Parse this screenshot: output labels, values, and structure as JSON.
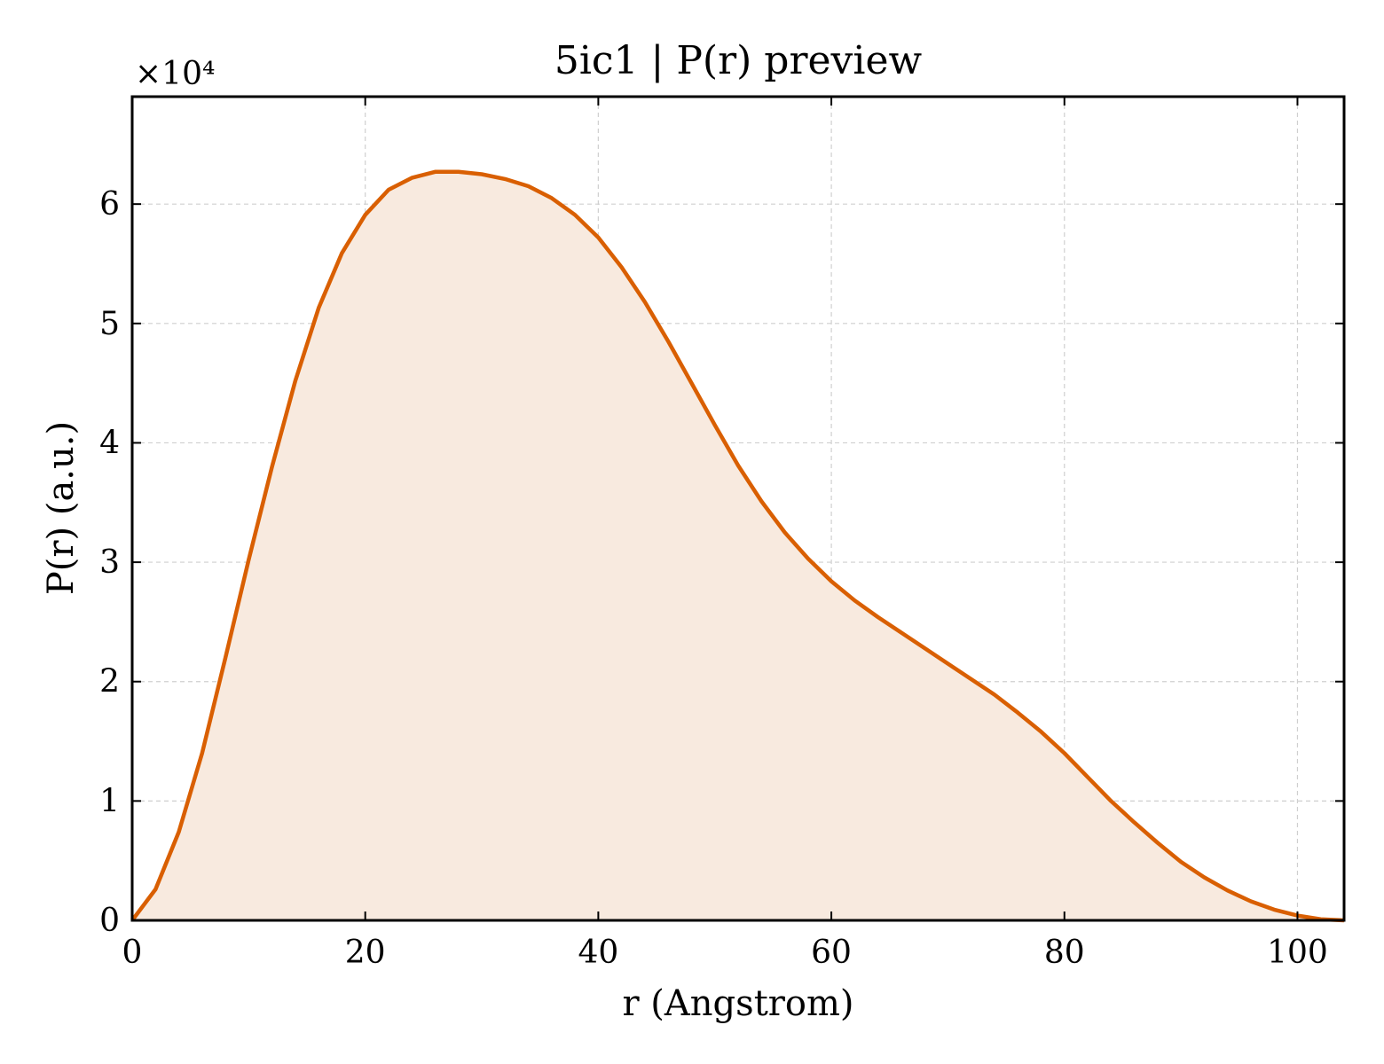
{
  "chart_data": {
    "type": "area",
    "title": "5ic1 | P(r) preview",
    "xlabel": "r (Angstrom)",
    "ylabel": "P(r) (a.u.)",
    "y_offset_label": "×10⁴",
    "xlim": [
      0,
      104
    ],
    "ylim": [
      0,
      69000
    ],
    "xticks": [
      0,
      20,
      40,
      60,
      80,
      100
    ],
    "xtick_labels": [
      "0",
      "20",
      "40",
      "60",
      "80",
      "100"
    ],
    "yticks": [
      0,
      10000,
      20000,
      30000,
      40000,
      50000,
      60000
    ],
    "ytick_labels": [
      "0",
      "1",
      "2",
      "3",
      "4",
      "5",
      "6"
    ],
    "grid": true,
    "line_color": "#d95f02",
    "fill_color": "#f8eadf",
    "series": [
      {
        "x": [
          0,
          2,
          4,
          6,
          8,
          10,
          12,
          14,
          16,
          18,
          20,
          22,
          24,
          26,
          28,
          30,
          32,
          34,
          36,
          38,
          40,
          42,
          44,
          46,
          48,
          50,
          52,
          54,
          56,
          58,
          60,
          62,
          64,
          66,
          68,
          70,
          72,
          74,
          76,
          78,
          80,
          82,
          84,
          86,
          88,
          90,
          92,
          94,
          96,
          98,
          100,
          102,
          104
        ],
        "y": [
          0,
          2600,
          7400,
          14000,
          22000,
          30200,
          38000,
          45200,
          51300,
          55900,
          59100,
          61200,
          62200,
          62700,
          62700,
          62500,
          62100,
          61500,
          60500,
          59100,
          57200,
          54700,
          51800,
          48500,
          45000,
          41500,
          38100,
          35100,
          32500,
          30300,
          28400,
          26800,
          25400,
          24100,
          22800,
          21500,
          20200,
          18900,
          17400,
          15800,
          14000,
          12000,
          10000,
          8200,
          6500,
          4900,
          3600,
          2500,
          1600,
          900,
          400,
          100,
          0
        ]
      }
    ]
  }
}
